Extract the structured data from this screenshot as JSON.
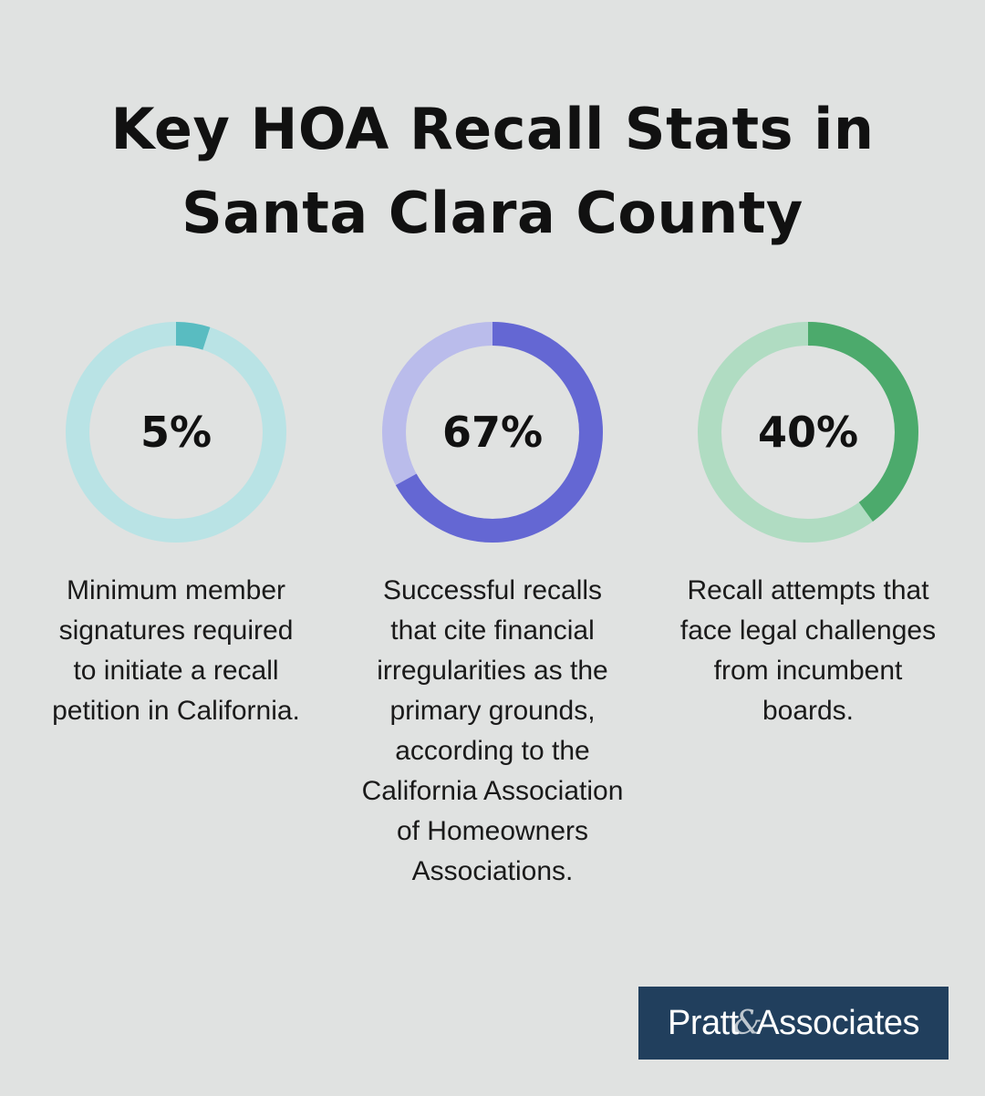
{
  "title": {
    "line1": "Key HOA Recall Stats in",
    "line2": "Santa Clara County"
  },
  "chart_data": {
    "type": "pie",
    "items": [
      {
        "value": 5,
        "label": "5%",
        "description": "Minimum member signatures required to initiate a recall petition in California.",
        "lines": [
          "Minimum member",
          "signatures required",
          "to initiate a recall",
          "petition in California."
        ],
        "color": "#59bcc1",
        "track_color": "#b9e3e5"
      },
      {
        "value": 67,
        "label": "67%",
        "description": "Successful recalls that cite financial irregularities as the primary grounds, according to the California Association of Homeowners Associations.",
        "lines": [
          "Successful recalls",
          "that cite financial",
          "irregularities as the",
          "primary grounds,",
          "according to the",
          "California Association",
          "of Homeowners",
          "Associations."
        ],
        "color": "#6467d3",
        "track_color": "#babceb"
      },
      {
        "value": 40,
        "label": "40%",
        "description": "Recall attempts that face legal challenges from incumbent boards.",
        "lines": [
          "Recall attempts that",
          "face legal challenges",
          "from incumbent",
          "boards."
        ],
        "color": "#4caa6c",
        "track_color": "#b0dcc2"
      }
    ]
  },
  "logo": {
    "text": "Pratt&Associates",
    "part1": "Pratt",
    "amp": "&",
    "part2": "Associates"
  }
}
